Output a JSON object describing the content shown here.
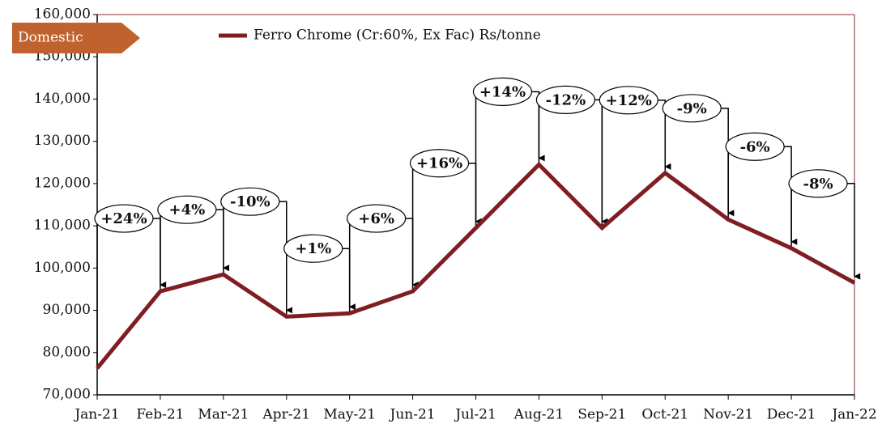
{
  "chart_data": {
    "type": "line",
    "badge": "Domestic",
    "categories": [
      "Jan-21",
      "Feb-21",
      "Mar-21",
      "Apr-21",
      "May-21",
      "Jun-21",
      "Jul-21",
      "Aug-21",
      "Sep-21",
      "Oct-21",
      "Nov-21",
      "Dec-21",
      "Jan-22"
    ],
    "series": [
      {
        "name": "Ferro Chrome (Cr:60%, Ex Fac) Rs/tonne",
        "color": "#7f1d22",
        "values": [
          76300,
          94500,
          98500,
          88500,
          89300,
          94500,
          109500,
          124500,
          109500,
          122500,
          111500,
          104700,
          96500
        ]
      }
    ],
    "annotations": [
      "+24%",
      "+4%",
      "-10%",
      "+1%",
      "+6%",
      "+16%",
      "+14%",
      "-12%",
      "+12%",
      "-9%",
      "-6%",
      "-8%"
    ],
    "ylim": [
      70000,
      160000
    ],
    "yticks": [
      {
        "value": 70000,
        "label": "70,000"
      },
      {
        "value": 80000,
        "label": "80,000"
      },
      {
        "value": 90000,
        "label": "90,000"
      },
      {
        "value": 100000,
        "label": "100,000"
      },
      {
        "value": 110000,
        "label": "110,000"
      },
      {
        "value": 120000,
        "label": "120,000"
      },
      {
        "value": 130000,
        "label": "130,000"
      },
      {
        "value": 140000,
        "label": "140,000"
      },
      {
        "value": 150000,
        "label": "150,000"
      },
      {
        "value": 160000,
        "label": "160,000"
      }
    ],
    "grid": false
  }
}
